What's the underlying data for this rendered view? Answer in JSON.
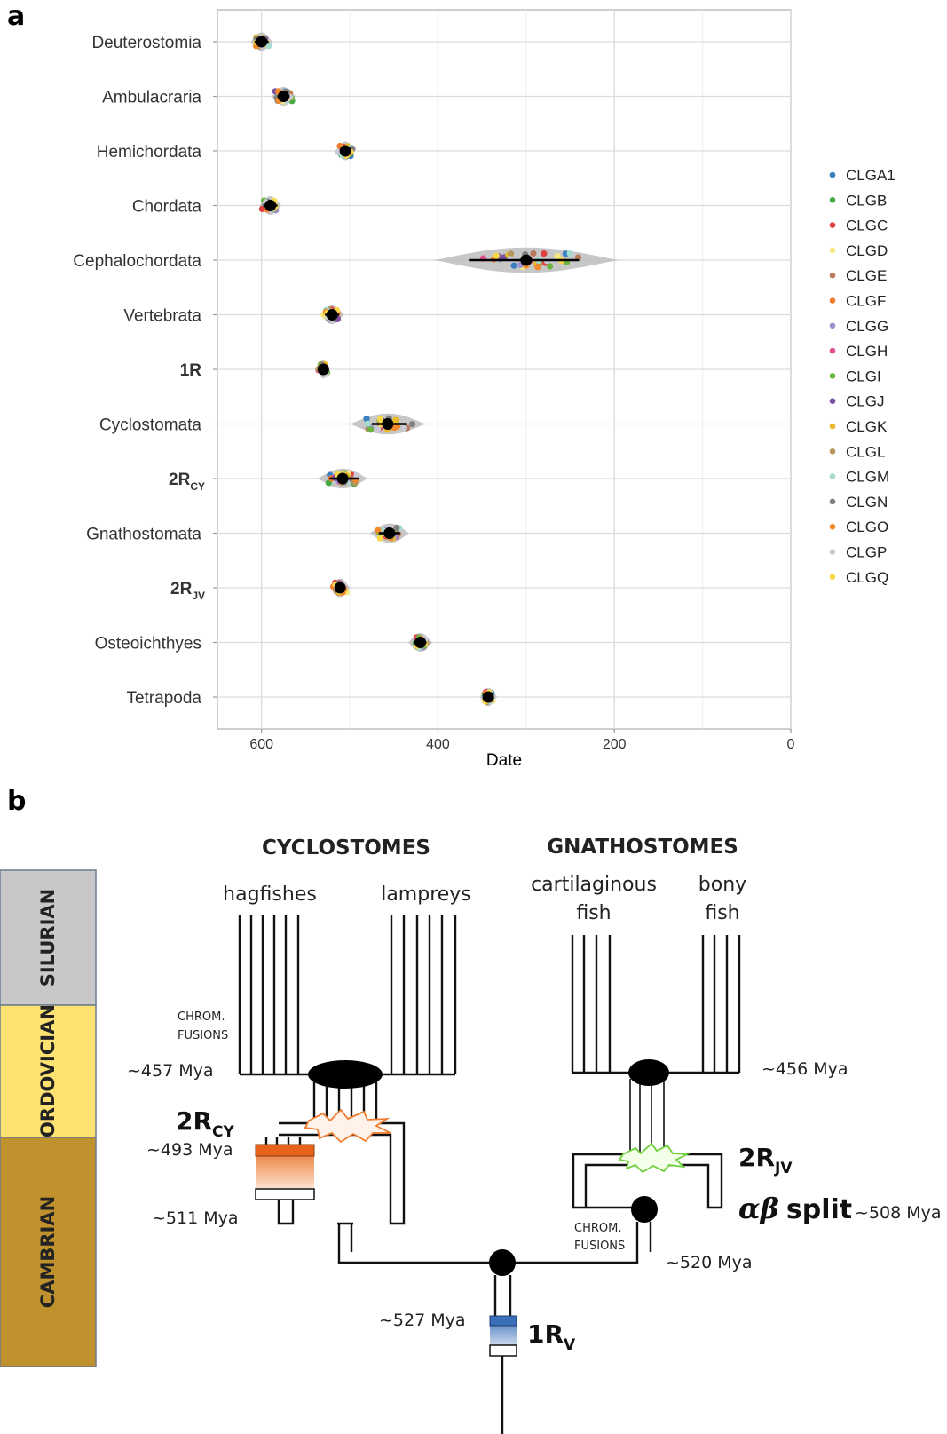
{
  "panel_a": {
    "letter": "a",
    "chart_data": {
      "type": "scatter",
      "xlabel": "Date",
      "ylabel": "",
      "xlim": [
        650,
        0
      ],
      "x_reversed": true,
      "x_ticks": [
        600,
        400,
        200,
        0
      ],
      "grid": true,
      "legend_placement": "right",
      "clades": [
        {
          "label": "Deuterostomia",
          "sub": "",
          "bold": false,
          "median": 600,
          "spread": 10,
          "ci": [
            592,
            608
          ]
        },
        {
          "label": "Ambulacraria",
          "sub": "",
          "bold": false,
          "median": 575,
          "spread": 11,
          "ci": [
            568,
            582
          ]
        },
        {
          "label": "Hemichordata",
          "sub": "",
          "bold": false,
          "median": 505,
          "spread": 9,
          "ci": [
            499,
            511
          ]
        },
        {
          "label": "Chordata",
          "sub": "",
          "bold": false,
          "median": 590,
          "spread": 10,
          "ci": [
            582,
            598
          ]
        },
        {
          "label": "Cephalochordata",
          "sub": "",
          "bold": false,
          "median": 300,
          "spread": 85,
          "ci": [
            365,
            240
          ]
        },
        {
          "label": "Vertebrata",
          "sub": "",
          "bold": false,
          "median": 520,
          "spread": 11,
          "ci": [
            512,
            528
          ]
        },
        {
          "label": "1R",
          "sub": "",
          "bold": true,
          "median": 530,
          "spread": 6,
          "ci": [
            526,
            534
          ]
        },
        {
          "label": "Cyclostomata",
          "sub": "",
          "bold": false,
          "median": 457,
          "spread": 35,
          "ci": [
            475,
            435
          ]
        },
        {
          "label": "2R",
          "sub": "CY",
          "bold": true,
          "median": 508,
          "spread": 23,
          "ci": [
            523,
            490
          ]
        },
        {
          "label": "Gnathostomata",
          "sub": "",
          "bold": false,
          "median": 455,
          "spread": 18,
          "ci": [
            467,
            443
          ]
        },
        {
          "label": "2R",
          "sub": "JV",
          "bold": true,
          "median": 511,
          "spread": 9,
          "ci": [
            517,
            505
          ]
        },
        {
          "label": "Osteoichthyes",
          "sub": "",
          "bold": false,
          "median": 420,
          "spread": 11,
          "ci": [
            427,
            413
          ]
        },
        {
          "label": "Tetrapoda",
          "sub": "",
          "bold": false,
          "median": 343,
          "spread": 8,
          "ci": [
            349,
            337
          ]
        }
      ],
      "series": [
        {
          "name": "CLGA1",
          "color": "#3a7fc1"
        },
        {
          "name": "CLGB",
          "color": "#44a845"
        },
        {
          "name": "CLGC",
          "color": "#e04040"
        },
        {
          "name": "CLGD",
          "color": "#f6e97e"
        },
        {
          "name": "CLGE",
          "color": "#b87a5e"
        },
        {
          "name": "CLGF",
          "color": "#ee7c2e"
        },
        {
          "name": "CLGG",
          "color": "#9f8fd0"
        },
        {
          "name": "CLGH",
          "color": "#e2508f"
        },
        {
          "name": "CLGI",
          "color": "#6ab43f"
        },
        {
          "name": "CLGJ",
          "color": "#7b4fa0"
        },
        {
          "name": "CLGK",
          "color": "#e7b92a"
        },
        {
          "name": "CLGL",
          "color": "#b5975a"
        },
        {
          "name": "CLGM",
          "color": "#a4dcd0"
        },
        {
          "name": "CLGN",
          "color": "#7f7f7f"
        },
        {
          "name": "CLGO",
          "color": "#f2892a"
        },
        {
          "name": "CLGP",
          "color": "#c9cad8"
        },
        {
          "name": "CLGQ",
          "color": "#f8d84a"
        }
      ]
    }
  },
  "panel_b": {
    "letter": "b",
    "groups": {
      "cyclostomes": "CYCLOSTOMES",
      "gnathostomes": "GNATHOSTOMES"
    },
    "lineages": {
      "hagfishes": "hagfishes",
      "lampreys": "lampreys",
      "cartilaginous_1": "cartilaginous",
      "cartilaginous_2": "fish",
      "bony_1": "bony",
      "bony_2": "fish"
    },
    "periods": [
      "SILURIAN",
      "ORDOVICIAN",
      "CAMBRIAN"
    ],
    "period_colors": [
      "#c8c8c8",
      "#fde272",
      "#c0922e"
    ],
    "chrom_fusions_1": "CHROM.",
    "chrom_fusions_2": "FUSIONS",
    "dates": {
      "d457": "~457 Mya",
      "d456": "~456 Mya",
      "d493": "~493 Mya",
      "d511": "~511 Mya",
      "d508": "~508 Mya",
      "d520": "~520 Mya",
      "d527": "~527 Mya"
    },
    "events": {
      "rcy": "2R",
      "rcy_sub": "CY",
      "rjv": "2R",
      "rjv_sub": "JV",
      "r1": "1R",
      "r1_sub": "V",
      "ab": "αβ",
      "split": "split"
    },
    "colors": {
      "orange": "#ee7c2e",
      "green": "#6fcf3a",
      "blue": "#3b6eb8"
    }
  }
}
